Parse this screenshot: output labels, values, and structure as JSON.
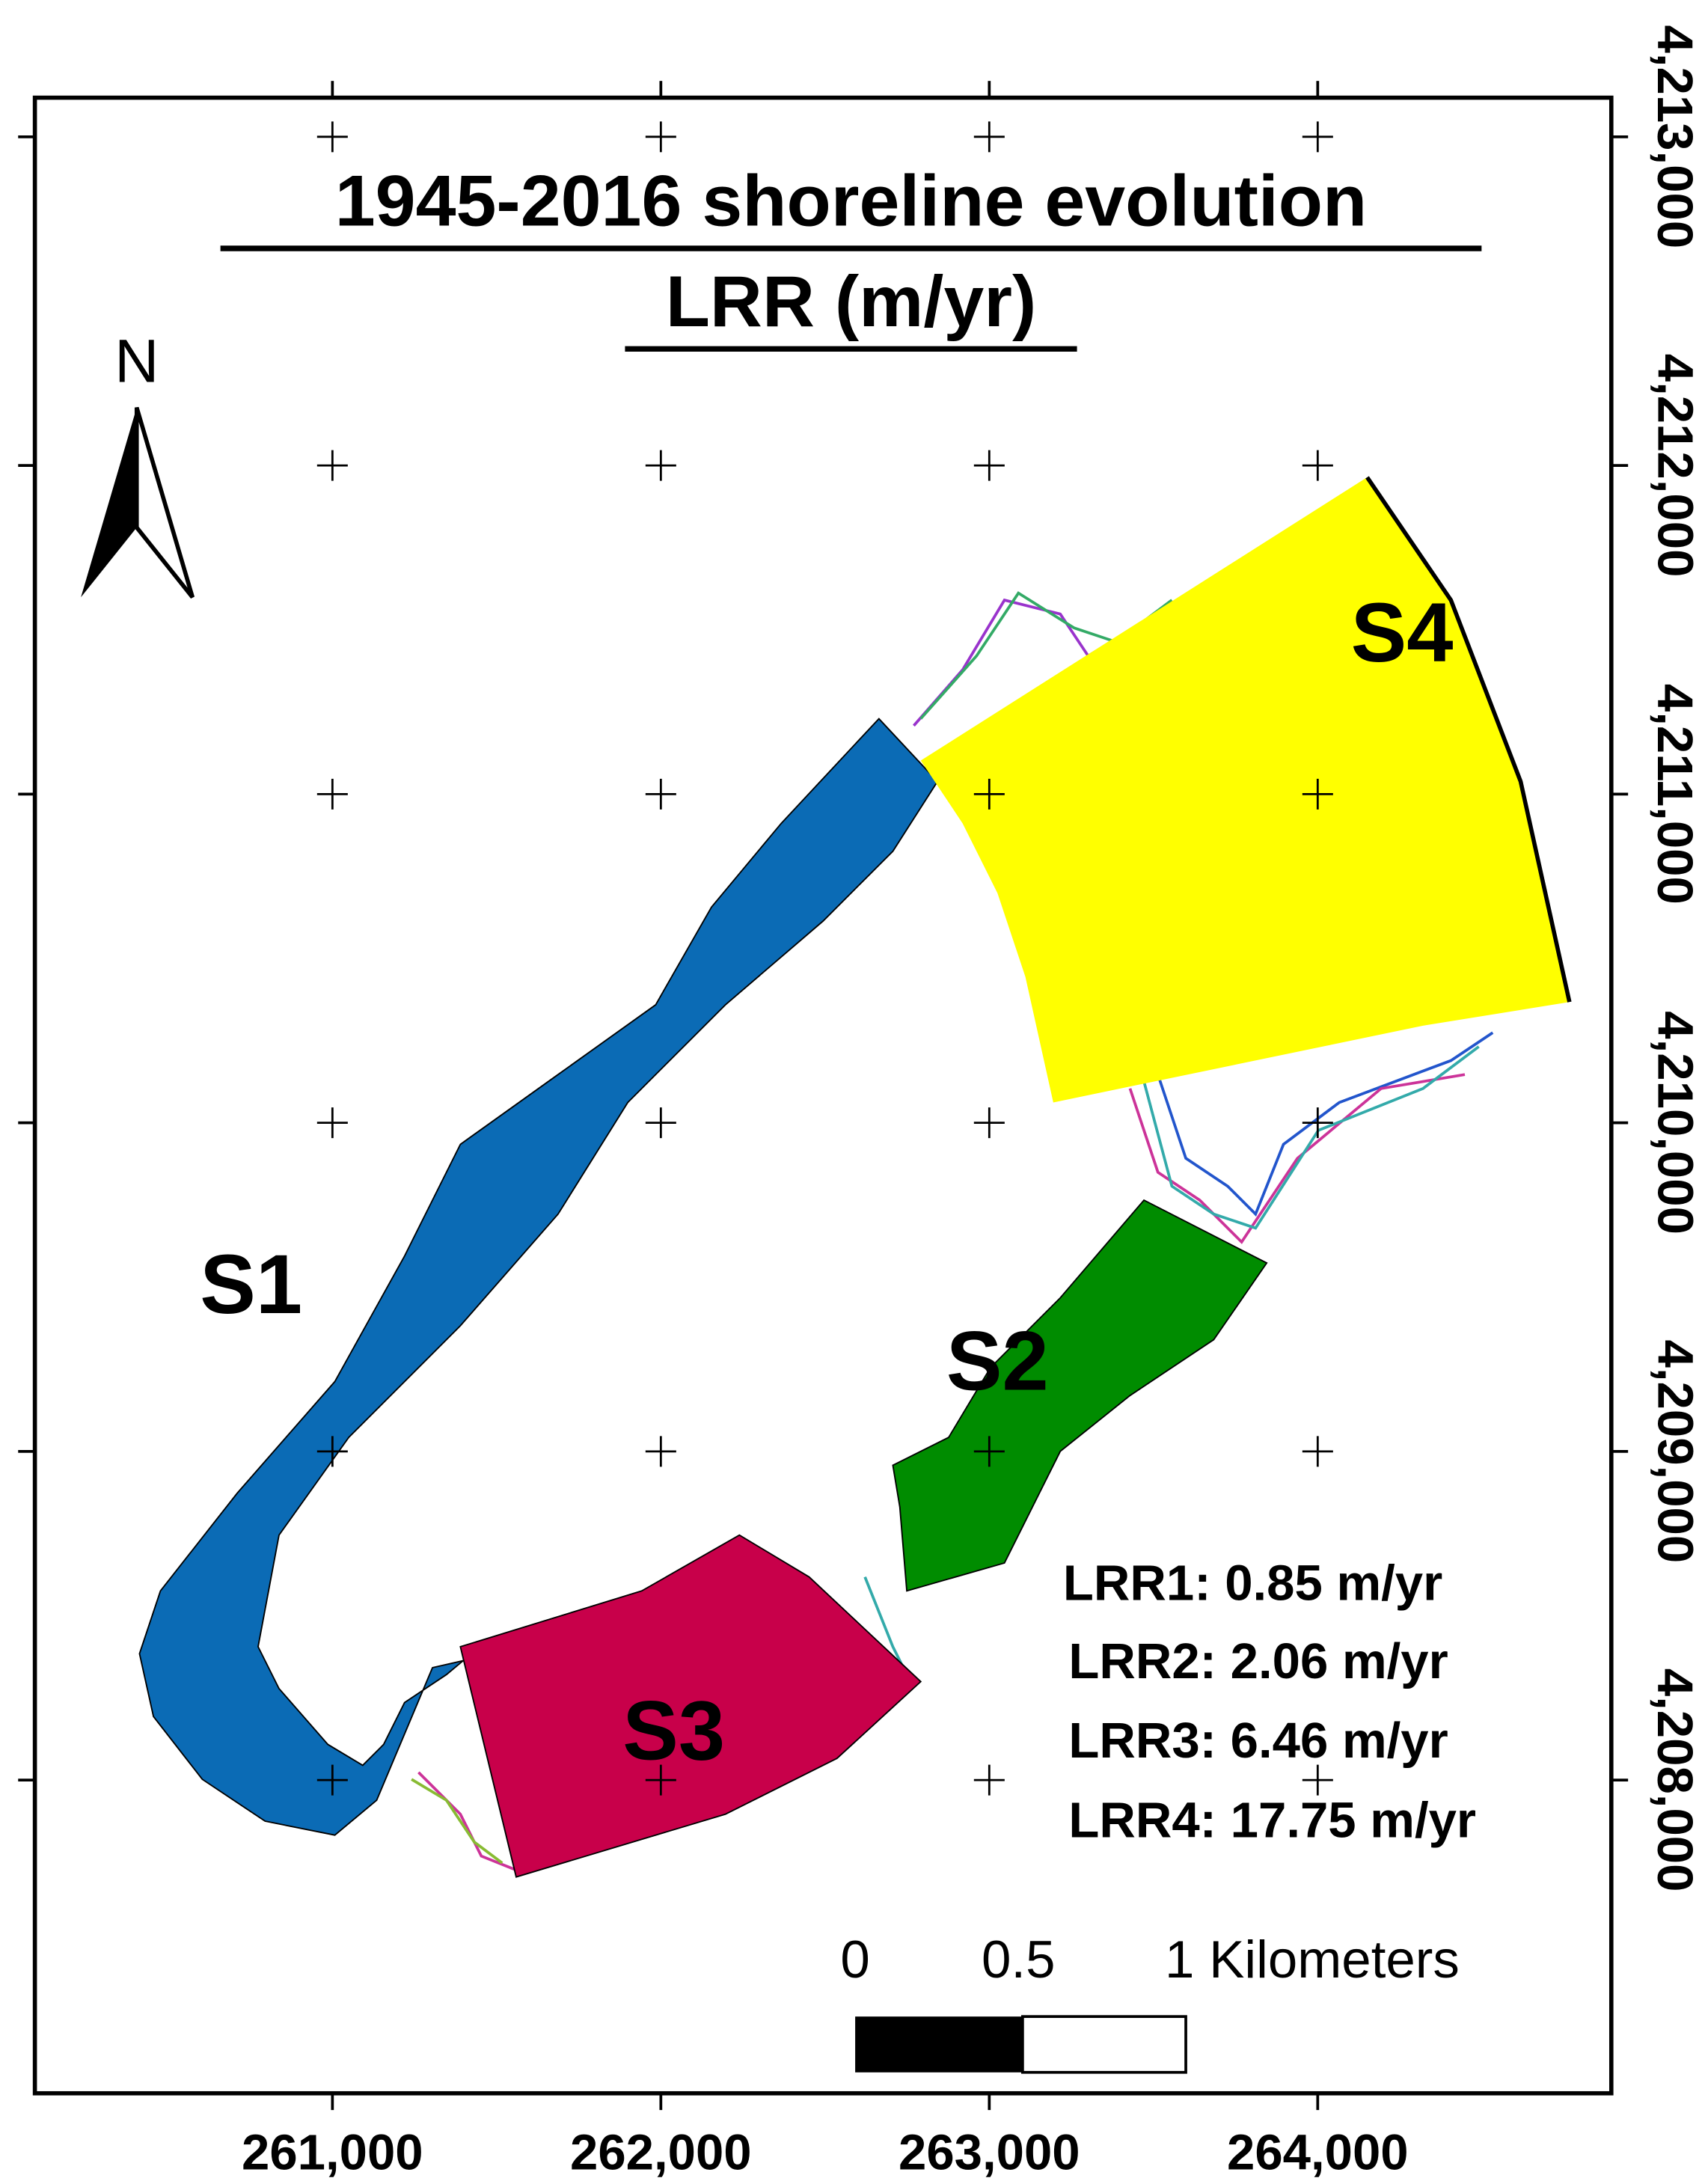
{
  "map": {
    "title": [
      "1945-2016 shoreline evolution",
      "LRR (m/yr)"
    ],
    "north": "N",
    "segments": [
      "S1",
      "S2",
      "S3",
      "S4"
    ],
    "legend": [
      "LRR1: 0.85 m/yr",
      "LRR2: 2.06 m/yr",
      "LRR3: 6.46 m/yr",
      "LRR4: 17.75 m/yr"
    ],
    "scale_bar": [
      "0",
      "0.5",
      "1 Kilometers"
    ],
    "xlim": [
      260094,
      264894
    ],
    "ylim": [
      4207047,
      4213119
    ],
    "xticks": [
      {
        "value": 261000,
        "label": "261,000"
      },
      {
        "value": 262000,
        "label": "262,000"
      },
      {
        "value": 263000,
        "label": "263,000"
      },
      {
        "value": 264000,
        "label": "264,000"
      }
    ],
    "yticks": [
      {
        "value": 4208000,
        "label": "4,208,000"
      },
      {
        "value": 4209000,
        "label": "4,209,000"
      },
      {
        "value": 4210000,
        "label": "4,210,000"
      },
      {
        "value": 4211000,
        "label": "4,211,000"
      },
      {
        "value": 4212000,
        "label": "4,212,000"
      },
      {
        "value": 4213000,
        "label": "4,213,000"
      }
    ]
  }
}
